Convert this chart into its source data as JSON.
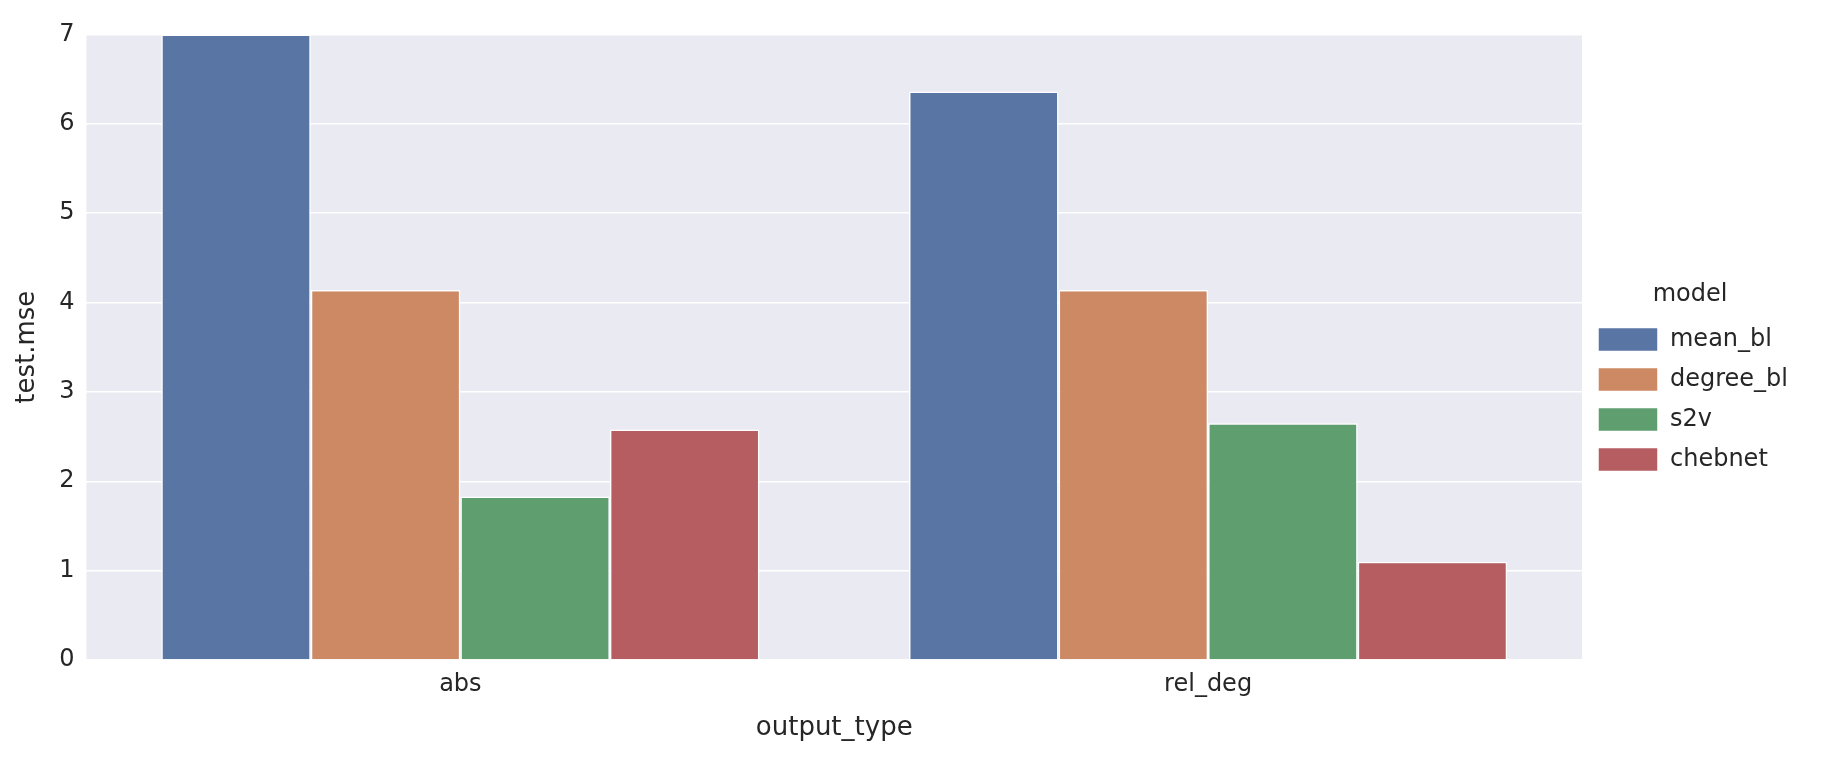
{
  "chart_data": {
    "type": "bar",
    "xlabel": "output_type",
    "ylabel": "test.mse",
    "legend_title": "model",
    "categories": [
      "abs",
      "rel_deg"
    ],
    "series": [
      {
        "name": "mean_bl",
        "color": "#5975a4",
        "values": [
          7.0,
          6.36
        ]
      },
      {
        "name": "degree_bl",
        "color": "#cc8963",
        "values": [
          4.14,
          4.14
        ]
      },
      {
        "name": "s2v",
        "color": "#5f9e6e",
        "values": [
          1.83,
          2.65
        ]
      },
      {
        "name": "chebnet",
        "color": "#b55d60",
        "values": [
          2.58,
          1.1
        ]
      }
    ],
    "ylim": [
      0,
      7
    ],
    "yticks": [
      0,
      1,
      2,
      3,
      4,
      5,
      6,
      7
    ],
    "grid": "y",
    "legend": "right"
  }
}
